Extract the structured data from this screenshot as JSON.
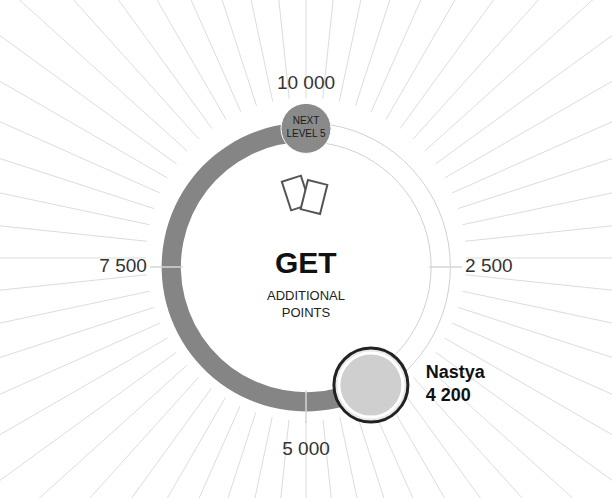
{
  "chart_data": {
    "type": "gauge",
    "title": "GET",
    "subtitle": "ADDITIONAL POINTS",
    "ylim": [
      0,
      10000
    ],
    "yticks": [
      {
        "value": 2500,
        "label": "2 500"
      },
      {
        "value": 5000,
        "label": "5 000"
      },
      {
        "value": 7500,
        "label": "7 500"
      },
      {
        "value": 10000,
        "label": "10 000"
      }
    ],
    "categories": [
      "Nastya"
    ],
    "values": [
      4200
    ],
    "value_labels": [
      "4 200"
    ],
    "data_labels": true,
    "color": "#858585",
    "annotations": [
      {
        "value": 10000,
        "text": "NEXT LEVEL 5"
      }
    ]
  }
}
